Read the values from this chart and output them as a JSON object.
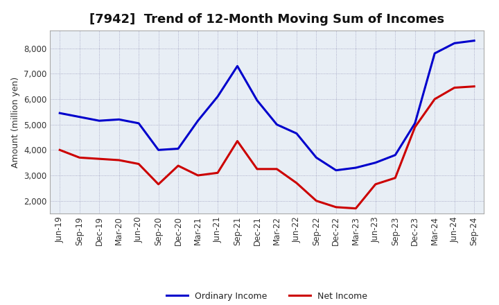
{
  "title": "[7942]  Trend of 12-Month Moving Sum of Incomes",
  "ylabel": "Amount (million yen)",
  "background_color": "#ffffff",
  "plot_bg_color": "#e8eef5",
  "grid_color": "#9999bb",
  "x_labels": [
    "Jun-19",
    "Sep-19",
    "Dec-19",
    "Mar-20",
    "Jun-20",
    "Sep-20",
    "Dec-20",
    "Mar-21",
    "Jun-21",
    "Sep-21",
    "Dec-21",
    "Mar-22",
    "Jun-22",
    "Sep-22",
    "Dec-22",
    "Mar-23",
    "Jun-23",
    "Sep-23",
    "Dec-23",
    "Mar-24",
    "Jun-24",
    "Sep-24"
  ],
  "ordinary_income": [
    5450,
    5300,
    5150,
    5200,
    5050,
    4000,
    4050,
    5150,
    6100,
    7300,
    5950,
    5000,
    4650,
    3700,
    3200,
    3300,
    3500,
    3800,
    5050,
    7800,
    8200,
    8300
  ],
  "net_income": [
    4000,
    3700,
    3650,
    3600,
    3450,
    2650,
    3380,
    3000,
    3100,
    4350,
    3250,
    3250,
    2700,
    2000,
    1750,
    1700,
    2650,
    2900,
    4900,
    6000,
    6450,
    6500
  ],
  "ordinary_color": "#0000cc",
  "net_color": "#cc0000",
  "ylim": [
    1500,
    8700
  ],
  "yticks": [
    2000,
    3000,
    4000,
    5000,
    6000,
    7000,
    8000
  ],
  "line_width": 2.2,
  "title_fontsize": 13,
  "label_fontsize": 8.5,
  "ylabel_fontsize": 9,
  "legend_fontsize": 9
}
